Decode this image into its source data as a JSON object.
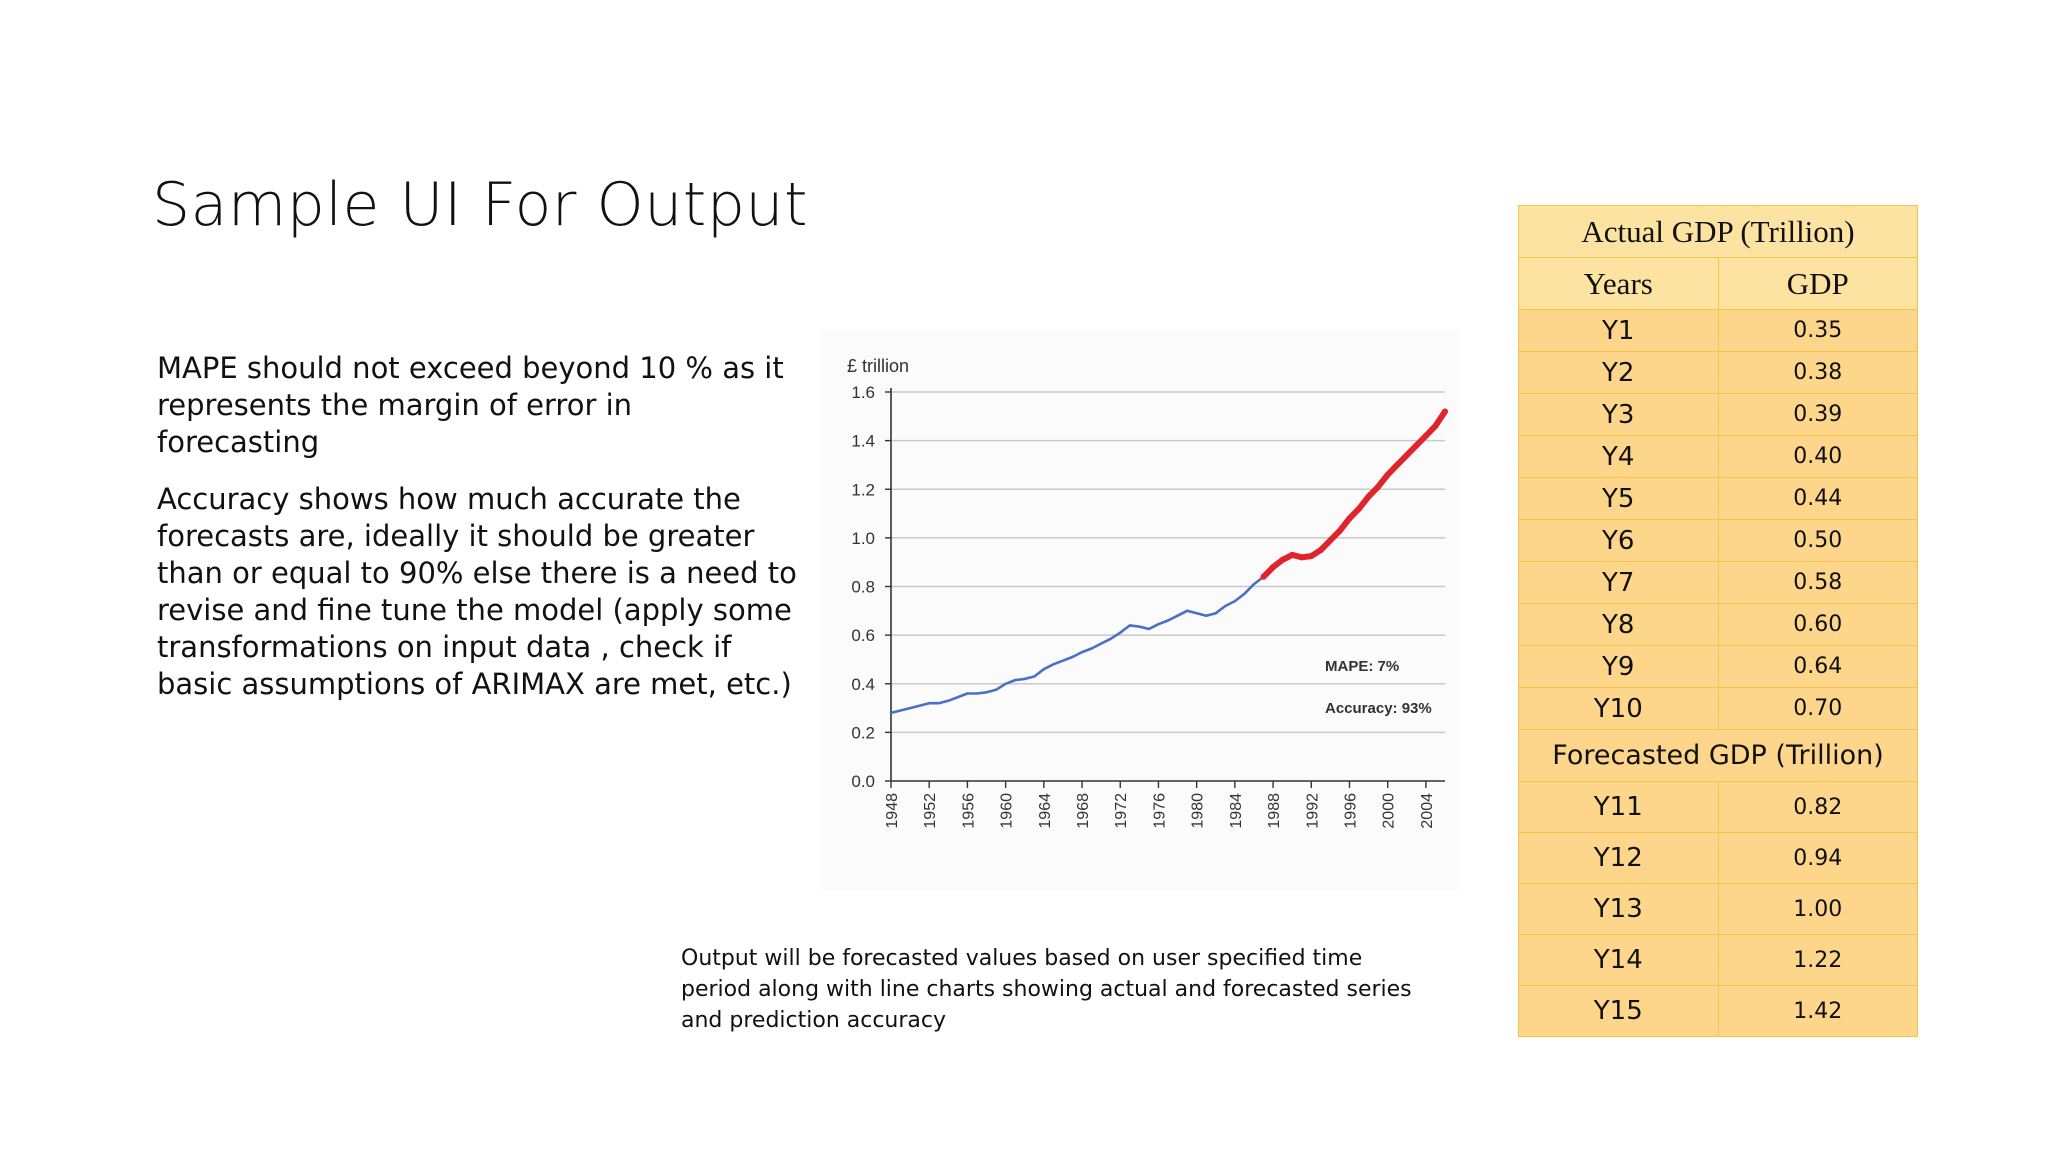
{
  "slide": {
    "title": "Sample UI For Output",
    "paragraphs": [
      "MAPE should not exceed beyond 10 % as it represents the margin of error in forecasting",
      "Accuracy shows how much accurate the forecasts are, ideally it should be greater than or equal to 90% else there is a need to revise and fine tune the model (apply some transformations on input data , check if basic assumptions of ARIMAX are met, etc.)"
    ],
    "caption": "Output will be forecasted values based on user specified time period along with line charts showing actual and forecasted series and prediction accuracy"
  },
  "table": {
    "actual_title": "Actual GDP (Trillion)",
    "col_years": "Years",
    "col_gdp": "GDP",
    "actual_rows": [
      {
        "year": "Y1",
        "gdp": "0.35"
      },
      {
        "year": "Y2",
        "gdp": "0.38"
      },
      {
        "year": "Y3",
        "gdp": "0.39"
      },
      {
        "year": "Y4",
        "gdp": "0.40"
      },
      {
        "year": "Y5",
        "gdp": "0.44"
      },
      {
        "year": "Y6",
        "gdp": "0.50"
      },
      {
        "year": "Y7",
        "gdp": "0.58"
      },
      {
        "year": "Y8",
        "gdp": "0.60"
      },
      {
        "year": "Y9",
        "gdp": "0.64"
      },
      {
        "year": "Y10",
        "gdp": "0.70"
      }
    ],
    "forecast_title": "Forecasted GDP (Trillion)",
    "forecast_rows": [
      {
        "year": "Y11",
        "gdp": "0.82"
      },
      {
        "year": "Y12",
        "gdp": "0.94"
      },
      {
        "year": "Y13",
        "gdp": "1.00"
      },
      {
        "year": "Y14",
        "gdp": "1.22"
      },
      {
        "year": "Y15",
        "gdp": "1.42"
      }
    ]
  },
  "chart_data": {
    "type": "line",
    "ylabel": "£ trillion",
    "ylim": [
      0,
      1.6
    ],
    "yticks": [
      "0.0",
      "0.2",
      "0.4",
      "0.6",
      "0.8",
      "1.0",
      "1.2",
      "1.4",
      "1.6"
    ],
    "xlim": [
      1948,
      2006
    ],
    "xticks": [
      "1948",
      "1952",
      "1956",
      "1960",
      "1964",
      "1968",
      "1972",
      "1976",
      "1980",
      "1984",
      "1988",
      "1992",
      "1996",
      "2000",
      "2004"
    ],
    "grid": true,
    "annotations": [
      "MAPE: 7%",
      "Accuracy: 93%"
    ],
    "series": [
      {
        "color": "#4a6fc4",
        "x": [
          1948,
          1950,
          1952,
          1953,
          1954,
          1956,
          1957,
          1958,
          1959,
          1960,
          1961,
          1962,
          1963,
          1964,
          1965,
          1966,
          1967,
          1968,
          1969,
          1970,
          1971,
          1972,
          1973,
          1974,
          1975,
          1976,
          1977,
          1978,
          1979,
          1980,
          1981,
          1982,
          1983,
          1984,
          1985,
          1986,
          1987
        ],
        "y": [
          0.28,
          0.3,
          0.32,
          0.32,
          0.33,
          0.36,
          0.36,
          0.365,
          0.375,
          0.4,
          0.415,
          0.42,
          0.43,
          0.46,
          0.48,
          0.495,
          0.51,
          0.53,
          0.545,
          0.565,
          0.585,
          0.61,
          0.64,
          0.635,
          0.625,
          0.645,
          0.66,
          0.68,
          0.7,
          0.69,
          0.68,
          0.69,
          0.72,
          0.74,
          0.77,
          0.81,
          0.84
        ]
      },
      {
        "color": "#e0242c",
        "x": [
          1987,
          1988,
          1989,
          1990,
          1991,
          1992,
          1993,
          1994,
          1995,
          1996,
          1997,
          1998,
          1999,
          2000,
          2001,
          2002,
          2003,
          2004,
          2005,
          2006
        ],
        "y": [
          0.84,
          0.88,
          0.91,
          0.93,
          0.92,
          0.925,
          0.95,
          0.99,
          1.03,
          1.08,
          1.12,
          1.17,
          1.21,
          1.26,
          1.3,
          1.34,
          1.38,
          1.42,
          1.46,
          1.52
        ]
      }
    ]
  }
}
